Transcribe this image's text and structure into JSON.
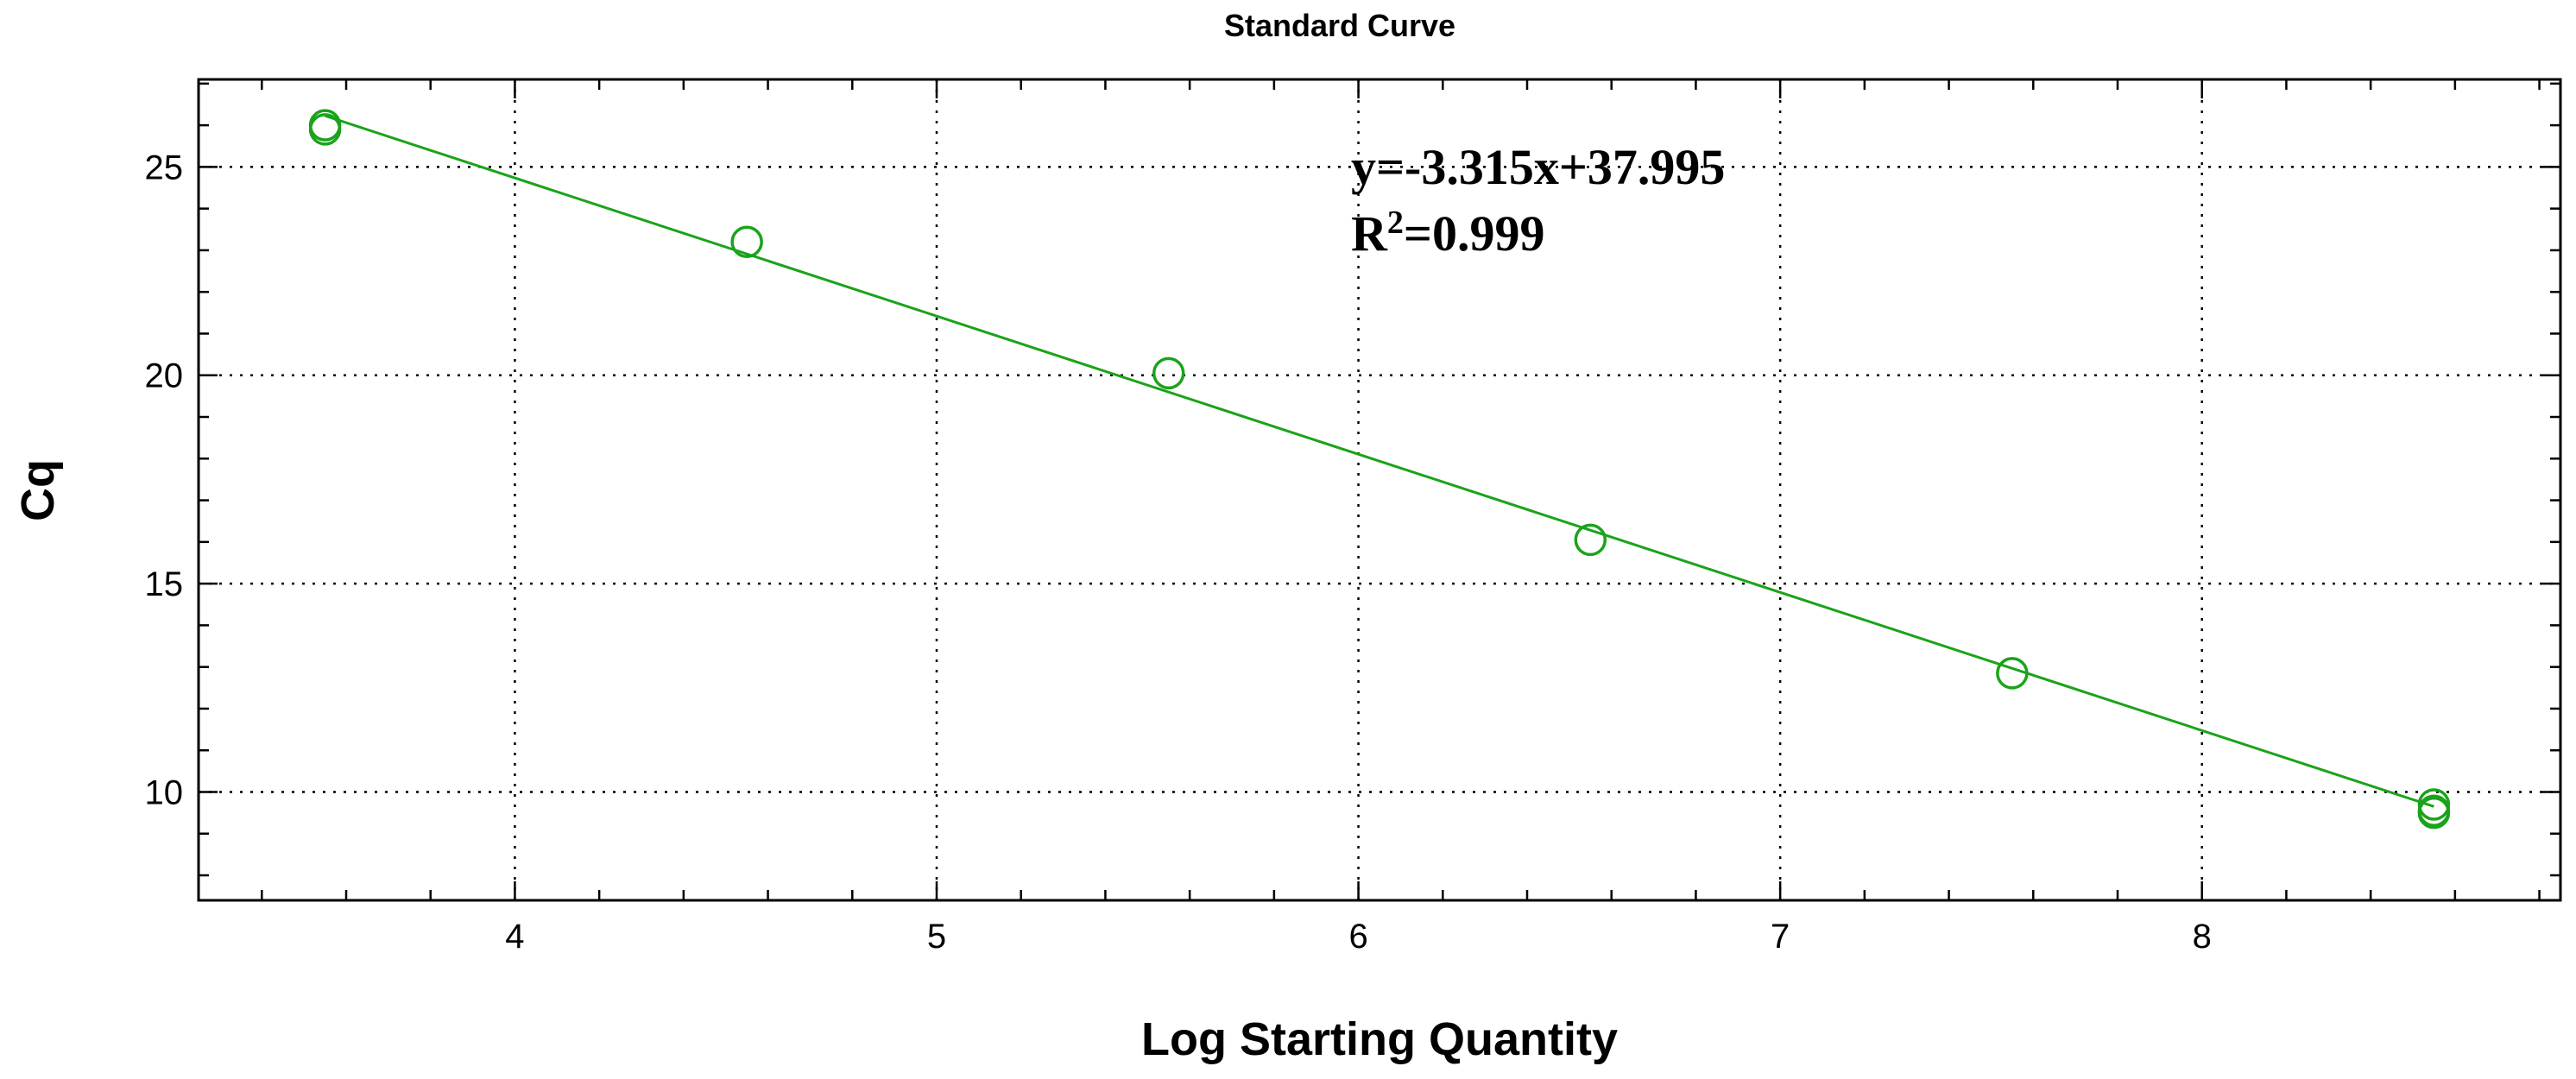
{
  "chart_data": {
    "type": "scatter",
    "title": "Standard Curve",
    "xlabel": "Log Starting Quantity",
    "ylabel": "Cq",
    "xlim": [
      3.25,
      8.85
    ],
    "ylim": [
      7.4,
      27.1
    ],
    "x_ticks": [
      4,
      5,
      6,
      7,
      8
    ],
    "y_ticks": [
      10,
      15,
      20,
      25
    ],
    "x_minor_step": 0.2,
    "y_minor_step": 1,
    "grid": true,
    "marker_color": "#1aa31a",
    "line_color": "#1aa31a",
    "series": [
      {
        "x": [
          3.55,
          3.55,
          4.55,
          5.55,
          6.55,
          7.55,
          8.55,
          8.55,
          8.55
        ],
        "y": [
          26.0,
          25.9,
          23.2,
          20.05,
          16.05,
          12.85,
          9.7,
          9.55,
          9.5
        ]
      }
    ],
    "fit": {
      "slope": -3.315,
      "intercept": 37.995,
      "x_range": [
        3.55,
        8.55
      ]
    },
    "annotation": {
      "equation": "y=-3.315x+37.995",
      "r_prefix": "R",
      "r_sup": "2",
      "r_suffix": "=0.999"
    }
  }
}
